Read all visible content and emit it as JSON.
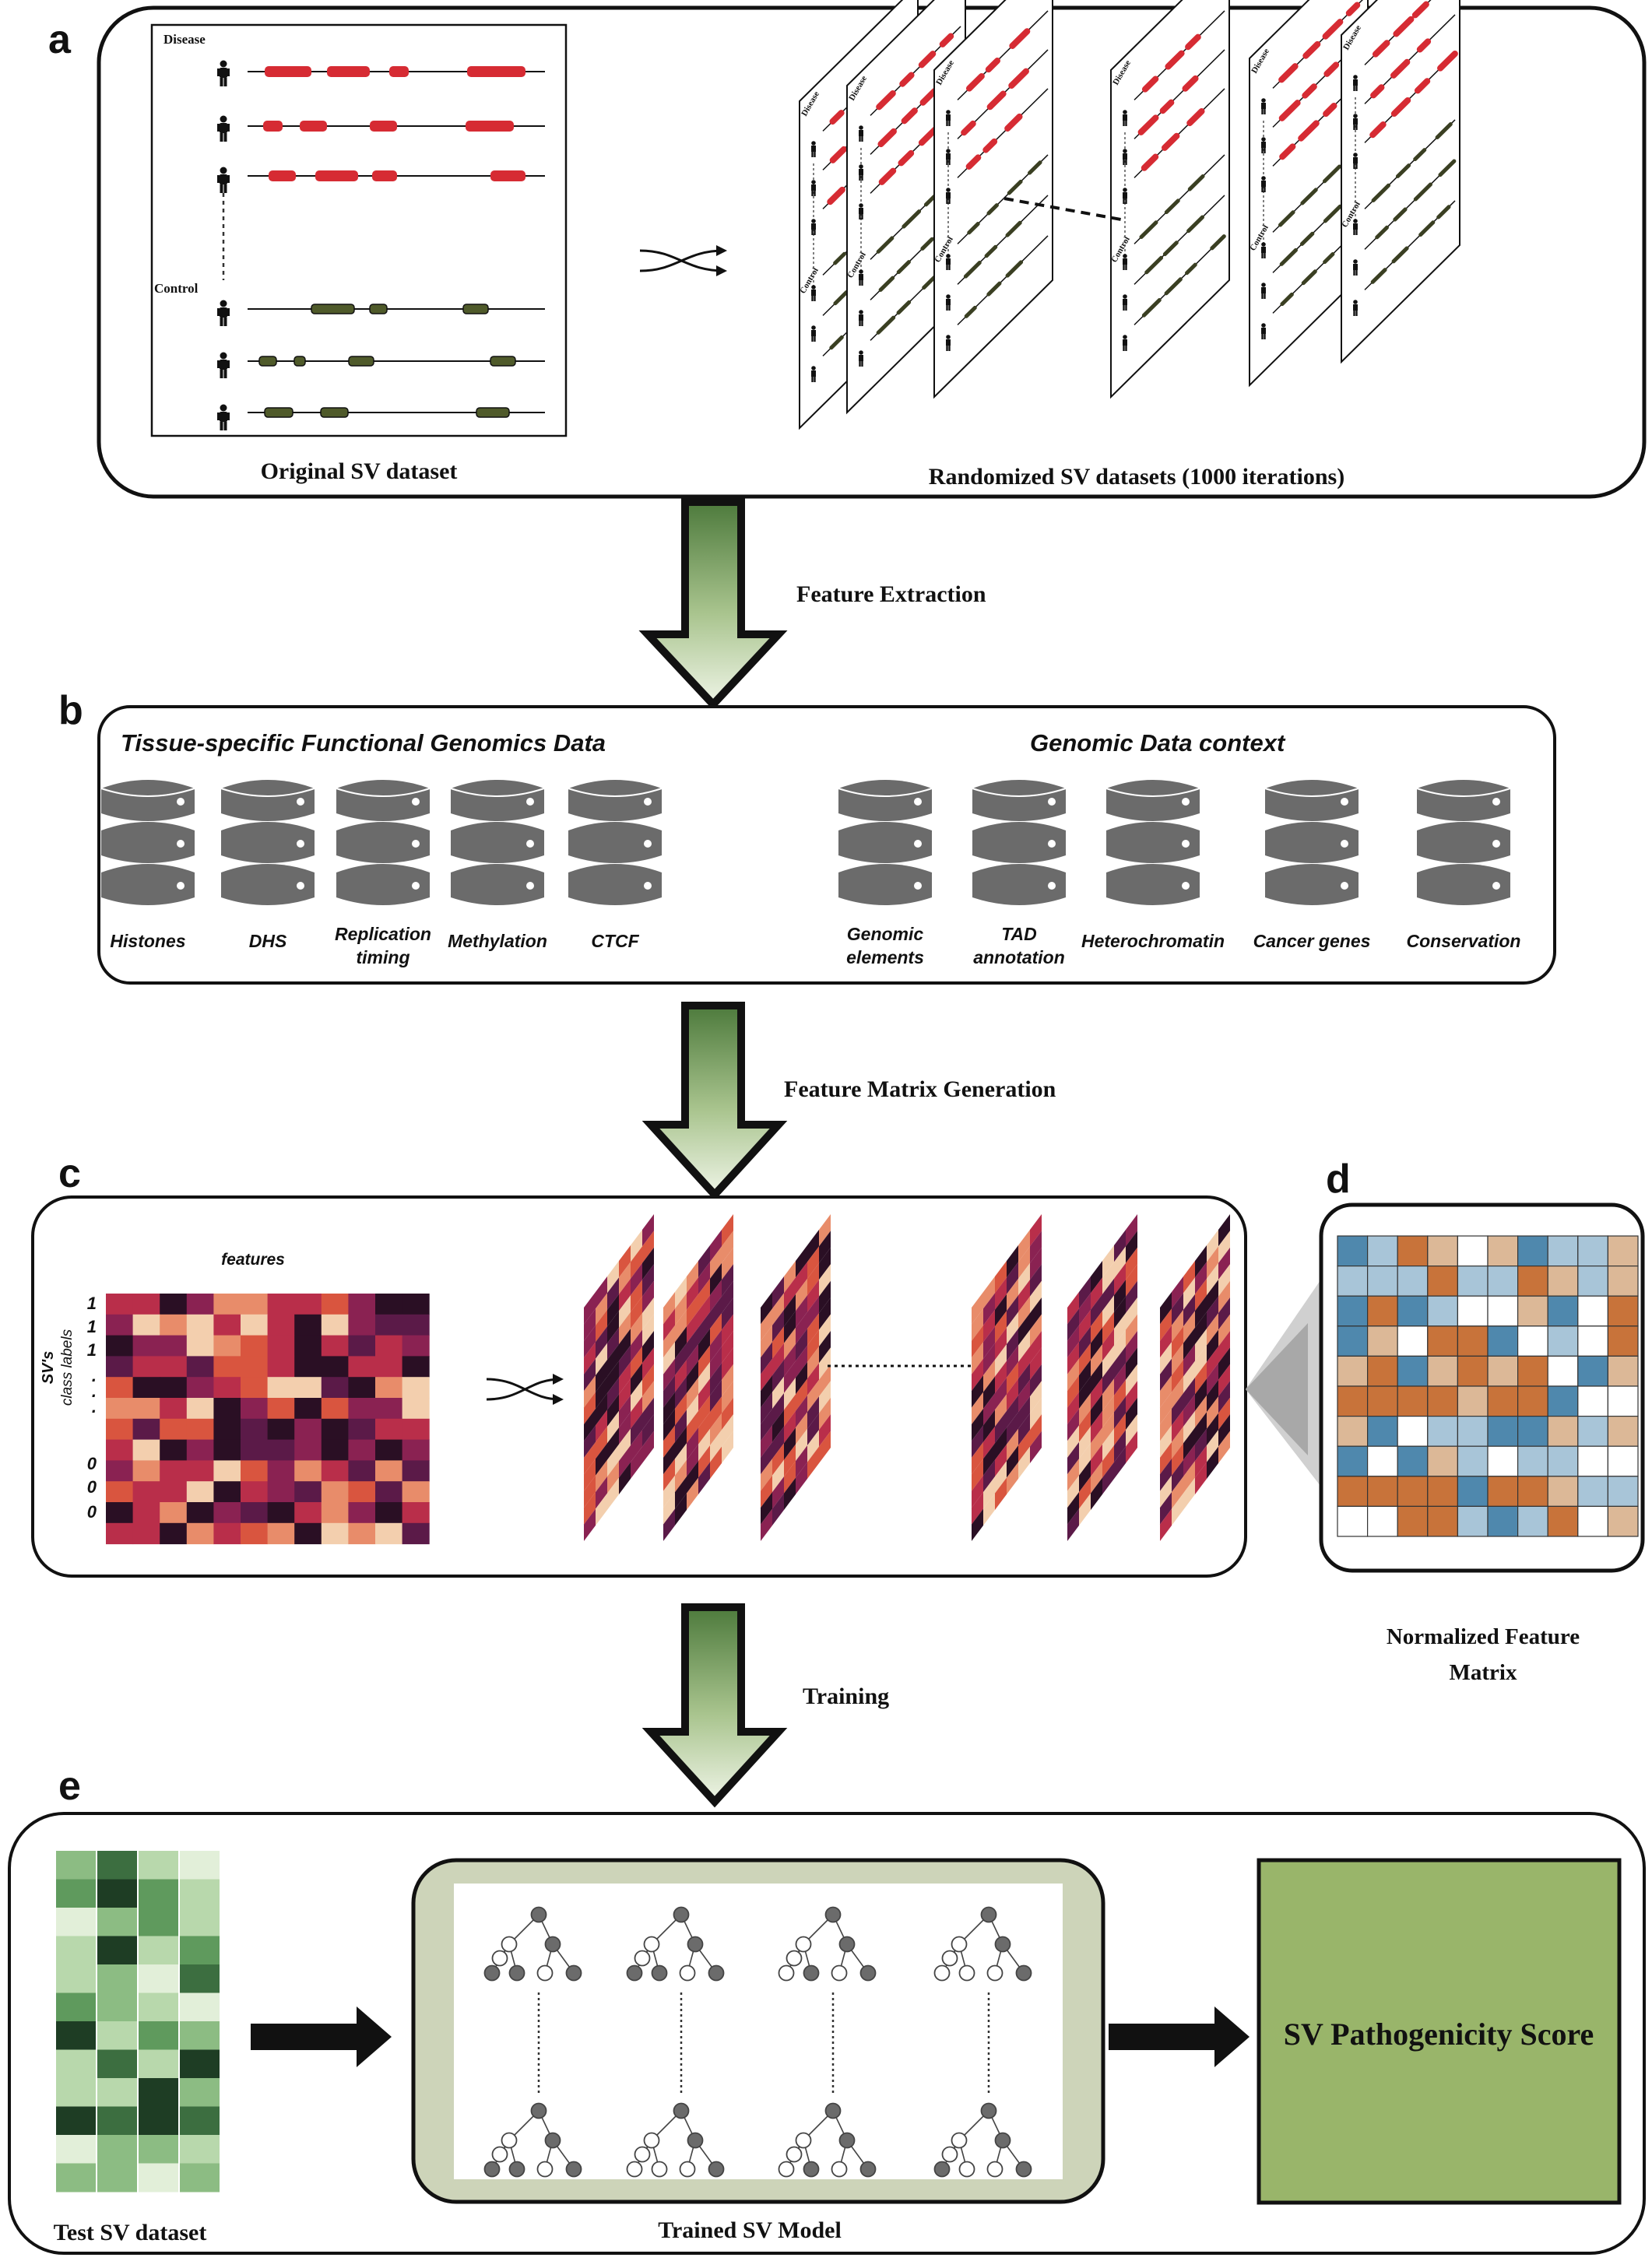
{
  "panel_labels": {
    "a": "a",
    "b": "b",
    "c": "c",
    "d": "d",
    "e": "e"
  },
  "panel_a": {
    "disease_label": "Disease",
    "control_label": "Control",
    "original_caption": "Original SV dataset",
    "randomized_caption": "Randomized SV datasets (1000 iterations)",
    "sheet_disease_label": "Disease",
    "sheet_control_label": "Control"
  },
  "arrows": {
    "feature_extraction": "Feature Extraction",
    "feature_matrix_generation": "Feature Matrix Generation",
    "training": "Training"
  },
  "panel_b": {
    "left_title": "Tissue-specific Functional Genomics Data",
    "right_title": "Genomic Data context",
    "left_items": [
      {
        "line1": "Histones",
        "line2": ""
      },
      {
        "line1": "DHS",
        "line2": ""
      },
      {
        "line1": "Replication",
        "line2": "timing"
      },
      {
        "line1": "Methylation",
        "line2": ""
      },
      {
        "line1": "CTCF",
        "line2": ""
      }
    ],
    "right_items": [
      {
        "line1": "Genomic",
        "line2": "elements"
      },
      {
        "line1": "TAD",
        "line2": "annotation"
      },
      {
        "line1": "Heterochromatin",
        "line2": ""
      },
      {
        "line1": "Cancer genes",
        "line2": ""
      },
      {
        "line1": "Conservation",
        "line2": ""
      }
    ],
    "db_color": "#6b6b6b"
  },
  "panel_c": {
    "features_label": "features",
    "yaxis_line1": "SV's",
    "yaxis_line2": "class labels",
    "class_labels": [
      "1",
      "1",
      "1",
      ".",
      ".",
      ".",
      "0",
      "0",
      "0"
    ],
    "heat_colors": [
      "#2a0f24",
      "#5b1a48",
      "#8a2252",
      "#b92e4a",
      "#d9553f",
      "#e88c6a",
      "#f3cfae"
    ]
  },
  "panel_d": {
    "caption_line1": "Normalized Feature",
    "caption_line2": "Matrix",
    "colors": [
      "#c8733a",
      "#dcb897",
      "#ffffff",
      "#a8c5d8",
      "#4f88ad"
    ]
  },
  "panel_e": {
    "test_caption": "Test SV dataset",
    "model_caption": "Trained SV Model",
    "score_label": "SV Pathogenicity Score",
    "score_color": "#99b56a",
    "test_colors": [
      "#1e3d24",
      "#3c6e40",
      "#5f9a5d",
      "#8cbc83",
      "#b8d8ac",
      "#e2efd9"
    ]
  }
}
